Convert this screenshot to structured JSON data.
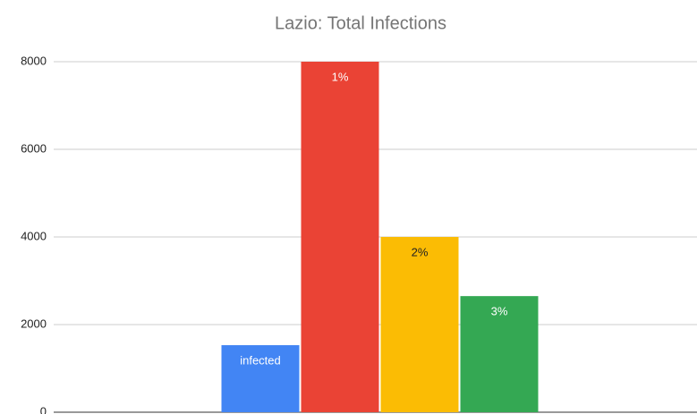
{
  "chart_data": {
    "type": "bar",
    "title": "Lazio: Total Infections",
    "categories": [
      null
    ],
    "series": [
      {
        "name": "infected",
        "color": "#4285f4",
        "values": [
          1530
        ]
      },
      {
        "name": "1%",
        "color": "#ea4335",
        "values": [
          8000
        ]
      },
      {
        "name": "2%",
        "color": "#fbbc04",
        "values": [
          4000
        ]
      },
      {
        "name": "3%",
        "color": "#34a853",
        "values": [
          2650
        ]
      }
    ],
    "ylim": [
      0,
      8000
    ],
    "yticks": [
      0,
      2000,
      4000,
      6000,
      8000
    ],
    "grid": true
  }
}
